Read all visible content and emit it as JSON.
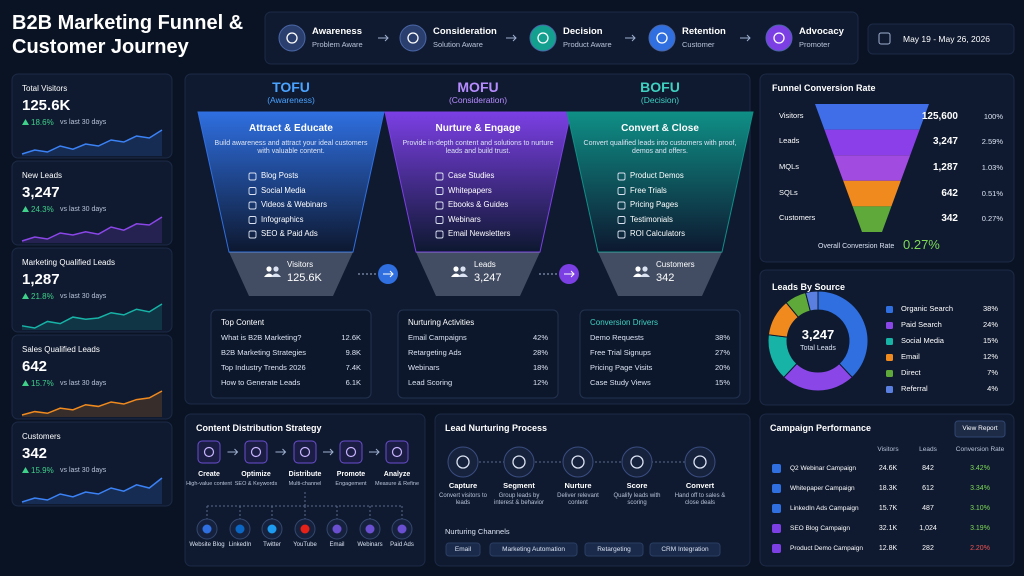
{
  "header": {
    "title": "B2B Marketing Funnel & Customer Journey",
    "date_range": "May 19 - May 26, 2026"
  },
  "journey": [
    {
      "label": "Awareness",
      "sub": "Problem Aware",
      "color": "#2b3f6e"
    },
    {
      "label": "Consideration",
      "sub": "Solution Aware",
      "color": "#2b3f6e"
    },
    {
      "label": "Decision",
      "sub": "Product Aware",
      "color": "#14a08f"
    },
    {
      "label": "Retention",
      "sub": "Customer",
      "color": "#2f6fe0"
    },
    {
      "label": "Advocacy",
      "sub": "Promoter",
      "color": "#7b3fe4"
    }
  ],
  "kpis": {
    "comparison": "vs last 30 days",
    "cards": [
      {
        "label": "Total Visitors",
        "value": "125.6K",
        "change": "18.6%",
        "color": "#3b82f6",
        "trend": [
          3,
          4,
          3.5,
          5,
          4.2,
          5.5,
          5,
          6.5,
          6,
          7.5,
          7,
          9
        ]
      },
      {
        "label": "New Leads",
        "value": "3,247",
        "change": "24.3%",
        "color": "#8b46e8",
        "trend": [
          2.5,
          3.5,
          3,
          4.5,
          4,
          4.8,
          4.2,
          6,
          5.2,
          6.8,
          6.5,
          8.5
        ]
      },
      {
        "label": "Marketing Qualified Leads",
        "value": "1,287",
        "change": "21.8%",
        "color": "#17b3a6",
        "trend": [
          3,
          2.5,
          4,
          3.5,
          5,
          4.5,
          4.8,
          6,
          5.5,
          6.8,
          6.2,
          8
        ]
      },
      {
        "label": "Sales Qualified Leads",
        "value": "642",
        "change": "15.7%",
        "color": "#f08a1e",
        "trend": [
          2,
          3,
          2.5,
          4,
          3.5,
          5,
          4.5,
          5.8,
          5.2,
          6.5,
          7,
          9
        ]
      },
      {
        "label": "Customers",
        "value": "342",
        "change": "15.9%",
        "color": "#3b82f6",
        "trend": [
          2.5,
          3.5,
          3,
          4.5,
          3.8,
          5,
          4.5,
          6,
          5.2,
          6.8,
          6,
          8.5
        ]
      }
    ]
  },
  "funnel": {
    "stages": [
      {
        "stage": "TOFU",
        "phase": "(Awareness)",
        "color": "#2f6fe0",
        "accent": "#4aa3ff",
        "title": "Attract & Educate",
        "description": "Build awareness and attract your ideal customers with valuable content.",
        "items": [
          "Blog Posts",
          "Social Media",
          "Videos & Webinars",
          "Infographics",
          "SEO & Paid Ads"
        ],
        "metric_label": "Visitors",
        "metric_value": "125.6K",
        "panel": {
          "title": "Top Content",
          "rows": [
            [
              "What is B2B Marketing?",
              "12.6K"
            ],
            [
              "B2B Marketing Strategies",
              "9.8K"
            ],
            [
              "Top Industry Trends 2026",
              "7.4K"
            ],
            [
              "How to Generate Leads",
              "6.1K"
            ]
          ]
        }
      },
      {
        "stage": "MOFU",
        "phase": "(Consideration)",
        "color": "#7b3fe4",
        "accent": "#b78cff",
        "title": "Nurture & Engage",
        "description": "Provide in-depth content and solutions to nurture leads and build trust.",
        "items": [
          "Case Studies",
          "Whitepapers",
          "Ebooks & Guides",
          "Webinars",
          "Email Newsletters"
        ],
        "metric_label": "Leads",
        "metric_value": "3,247",
        "panel": {
          "title": "Nurturing Activities",
          "rows": [
            [
              "Email Campaigns",
              "42%"
            ],
            [
              "Retargeting Ads",
              "28%"
            ],
            [
              "Webinars",
              "18%"
            ],
            [
              "Lead Scoring",
              "12%"
            ]
          ]
        }
      },
      {
        "stage": "BOFU",
        "phase": "(Decision)",
        "color": "#0f8f86",
        "accent": "#3fd0c0",
        "title": "Convert & Close",
        "description": "Convert qualified leads into customers with proof, demos and offers.",
        "items": [
          "Product Demos",
          "Free Trials",
          "Pricing Pages",
          "Testimonials",
          "ROI Calculators"
        ],
        "metric_label": "Customers",
        "metric_value": "342",
        "panel": {
          "title": "Conversion Drivers",
          "rows": [
            [
              "Demo Requests",
              "38%"
            ],
            [
              "Free Trial Signups",
              "27%"
            ],
            [
              "Pricing Page Visits",
              "20%"
            ],
            [
              "Case Study Views",
              "15%"
            ]
          ]
        }
      }
    ]
  },
  "conversion": {
    "title": "Funnel Conversion Rate",
    "rows": [
      {
        "label": "Visitors",
        "value": "125,600",
        "rate": "100%",
        "color": "#3f6ee8"
      },
      {
        "label": "Leads",
        "value": "3,247",
        "rate": "2.59%",
        "color": "#8b3fe8"
      },
      {
        "label": "MQLs",
        "value": "1,287",
        "rate": "1.03%",
        "color": "#a24be0"
      },
      {
        "label": "SQLs",
        "value": "642",
        "rate": "0.51%",
        "color": "#f08a1e"
      },
      {
        "label": "Customers",
        "value": "342",
        "rate": "0.27%",
        "color": "#5fa83a"
      }
    ],
    "overall_label": "Overall Conversion Rate",
    "overall_value": "0.27%"
  },
  "leads_by_source": {
    "title": "Leads By Source",
    "total": "3,247",
    "total_label": "Total Leads",
    "sources": [
      {
        "name": "Organic Search",
        "color": "#2f6fe0",
        "value": 38,
        "value_label": "38%"
      },
      {
        "name": "Paid Search",
        "color": "#8b46e8",
        "value": 24,
        "value_label": "24%"
      },
      {
        "name": "Social Media",
        "color": "#17b3a6",
        "value": 15,
        "value_label": "15%"
      },
      {
        "name": "Email",
        "color": "#f08a1e",
        "value": 12,
        "value_label": "12%"
      },
      {
        "name": "Direct",
        "color": "#5fa83a",
        "value": 7,
        "value_label": "7%"
      },
      {
        "name": "Referral",
        "color": "#5a7fe0",
        "value": 4,
        "value_label": "4%"
      }
    ]
  },
  "content_distribution": {
    "title": "Content Distribution Strategy",
    "steps": [
      {
        "label": "Create",
        "sub": "High-value content"
      },
      {
        "label": "Optimize",
        "sub": "SEO & Keywords"
      },
      {
        "label": "Distribute",
        "sub": "Multi-channel"
      },
      {
        "label": "Promote",
        "sub": "Engagement"
      },
      {
        "label": "Analyze",
        "sub": "Measure & Refine"
      }
    ],
    "channels": [
      "Website Blog",
      "LinkedIn",
      "Twitter",
      "YouTube",
      "Email",
      "Webinars",
      "Paid Ads"
    ]
  },
  "nurturing": {
    "title": "Lead Nurturing Process",
    "steps": [
      {
        "label": "Capture",
        "sub": "Convert visitors to leads"
      },
      {
        "label": "Segment",
        "sub": "Group leads by interest & behavior"
      },
      {
        "label": "Nurture",
        "sub": "Deliver relevant content"
      },
      {
        "label": "Score",
        "sub": "Qualify leads with scoring"
      },
      {
        "label": "Convert",
        "sub": "Hand off to sales & close deals"
      }
    ],
    "channels_title": "Nurturing Channels",
    "channels": [
      "Email",
      "Marketing Automation",
      "Retargeting",
      "CRM Integration"
    ]
  },
  "campaigns": {
    "title": "Campaign Performance",
    "action": "View Report",
    "columns": [
      "Visitors",
      "Leads",
      "Conversion Rate"
    ],
    "rows": [
      {
        "name": "Q2 Webinar Campaign",
        "visitors": "24.6K",
        "leads": "842",
        "rate": "3.42%",
        "rate_color": "#7ed957"
      },
      {
        "name": "Whitepaper Campaign",
        "visitors": "18.3K",
        "leads": "612",
        "rate": "3.34%",
        "rate_color": "#7ed957"
      },
      {
        "name": "LinkedIn Ads Campaign",
        "visitors": "15.7K",
        "leads": "487",
        "rate": "3.10%",
        "rate_color": "#7ed957"
      },
      {
        "name": "SEO Blog Campaign",
        "visitors": "32.1K",
        "leads": "1,024",
        "rate": "3.19%",
        "rate_color": "#7ed957"
      },
      {
        "name": "Product Demo Campaign",
        "visitors": "12.8K",
        "leads": "282",
        "rate": "2.20%",
        "rate_color": "#f05252"
      }
    ]
  }
}
